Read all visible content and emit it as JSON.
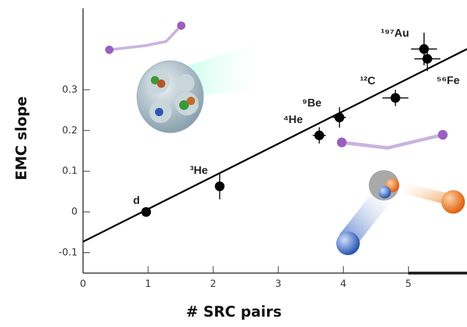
{
  "chart_data": {
    "type": "scatter",
    "xlabel": "# SRC pairs",
    "ylabel": "EMC slope",
    "xlim": [
      0,
      5.9
    ],
    "ylim": [
      -0.15,
      0.5
    ],
    "xticks": [
      0,
      1,
      2,
      3,
      4,
      5
    ],
    "yticks": [
      -0.1,
      0,
      0.1,
      0.2,
      0.3
    ],
    "series": [
      {
        "color": "#000000",
        "labels": [
          "d",
          "³He",
          "⁴He",
          "⁹Be",
          "¹²C",
          "¹⁹⁷Au",
          "⁵⁶Fe"
        ],
        "x": [
          0.97,
          2.1,
          3.63,
          3.94,
          4.8,
          5.24,
          5.29
        ],
        "y": [
          0.0,
          0.063,
          0.188,
          0.232,
          0.28,
          0.4,
          0.376
        ],
        "yerr": [
          0.005,
          0.032,
          0.02,
          0.025,
          0.02,
          0.04,
          0.03
        ],
        "xerr": [
          0.05,
          0.05,
          0.1,
          0.1,
          0.2,
          0.2,
          0.2
        ]
      }
    ],
    "fit_line": {
      "color": "#000000",
      "x": [
        0,
        5.9
      ],
      "y": [
        -0.073,
        0.4
      ]
    }
  }
}
